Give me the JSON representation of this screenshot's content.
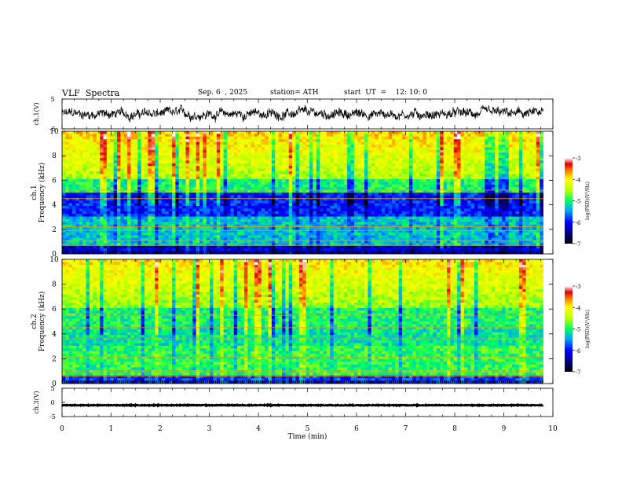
{
  "header": {
    "title": "VLF  Spectra",
    "date": "Sep. 6  , 2025",
    "station": "station= ATH",
    "start": "start  UT  =    12: 10: 0"
  },
  "chart_data": [
    {
      "type": "line",
      "panel": "ch1-waveform",
      "ylabel": "ch.1(V)",
      "ylim": [
        -5,
        5
      ],
      "yticks": [
        "5",
        "-5"
      ],
      "xlim": [
        0,
        10
      ],
      "trace_span_min": [
        0,
        9.8
      ],
      "approx_level": 0,
      "approx_amplitude": 1.8,
      "color": "#000000"
    },
    {
      "type": "heatmap",
      "panel": "ch1-spectrogram",
      "ylabel": "ch.1\nFrequency  (kHz)",
      "ylim": [
        0,
        10
      ],
      "yticks": [
        "0",
        "2",
        "4",
        "6",
        "8",
        "10"
      ],
      "xlim": [
        0,
        10
      ],
      "data_span_min": [
        0,
        9.8
      ],
      "quiet_band_khz": [
        3,
        5
      ],
      "colorbar": {
        "label": "log(PSD)(V²/Hz)",
        "range": [
          -7,
          -3
        ],
        "ticks": [
          "-3",
          "-4",
          "-5",
          "-6",
          "-7"
        ]
      }
    },
    {
      "type": "heatmap",
      "panel": "ch2-spectrogram",
      "ylabel": "ch.2\nFrequency  (kHz)",
      "ylim": [
        0,
        10
      ],
      "yticks": [
        "0",
        "2",
        "4",
        "6",
        "8",
        "10"
      ],
      "xlim": [
        0,
        10
      ],
      "data_span_min": [
        0,
        9.8
      ],
      "colorbar": {
        "label": "log(PSD)(V²/Hz)",
        "range": [
          -7,
          -3
        ],
        "ticks": [
          "-3",
          "-4",
          "-5",
          "-6",
          "-7"
        ]
      }
    },
    {
      "type": "line",
      "panel": "ch3-waveform",
      "ylabel": "ch.3(V)",
      "ylim": [
        -5,
        5
      ],
      "yticks": [
        "5",
        "0",
        "-5"
      ],
      "xlim": [
        0,
        10
      ],
      "trace_span_min": [
        0,
        9.8
      ],
      "approx_level": -1.0,
      "color": "#000000"
    }
  ],
  "x_axis": {
    "label": "Time  (min)",
    "ticks": [
      "0",
      "1",
      "2",
      "3",
      "4",
      "5",
      "6",
      "7",
      "8",
      "9",
      "10"
    ]
  }
}
